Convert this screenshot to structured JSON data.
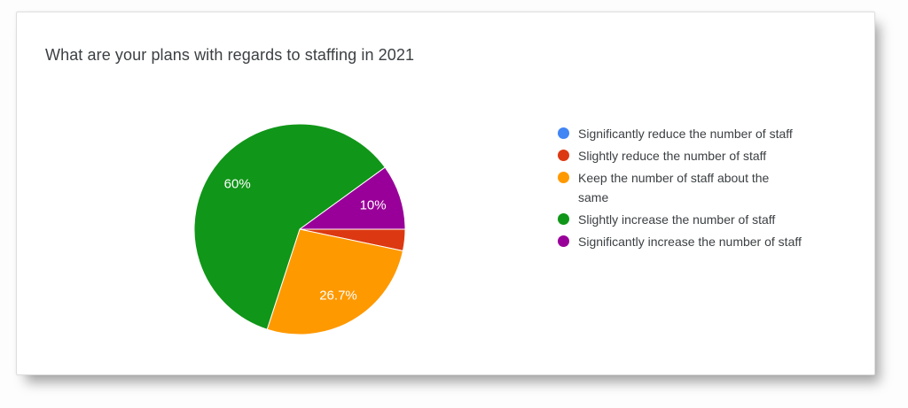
{
  "chart_data": {
    "type": "pie",
    "title": "What are your plans with regards to staffing in 2021",
    "legend_position": "right",
    "start_angle_deg": 90,
    "direction": "clockwise",
    "slices": [
      {
        "label": "Significantly reduce the number of staff",
        "value_pct": 0,
        "color": "#4285F4",
        "data_label": ""
      },
      {
        "label": "Slightly reduce the number of staff",
        "value_pct": 3.3,
        "color": "#DC3912",
        "data_label": ""
      },
      {
        "label": "Keep the number of staff about the same",
        "value_pct": 26.7,
        "color": "#FF9900",
        "data_label": "26.7%"
      },
      {
        "label": "Slightly increase the number of staff",
        "value_pct": 60,
        "color": "#109618",
        "data_label": "60%"
      },
      {
        "label": "Significantly increase the number of staff",
        "value_pct": 10,
        "color": "#990099",
        "data_label": "10%"
      }
    ]
  },
  "legend": {
    "items": [
      {
        "text": "Significantly reduce the number of staff",
        "color": "#4285F4"
      },
      {
        "text": "Slightly reduce the number of staff",
        "color": "#DC3912"
      },
      {
        "text": "Keep the number of staff about the\nsame",
        "color": "#FF9900"
      },
      {
        "text": "Slightly increase the number of staff",
        "color": "#109618"
      },
      {
        "text": "Significantly increase the number of staff",
        "color": "#990099"
      }
    ]
  }
}
